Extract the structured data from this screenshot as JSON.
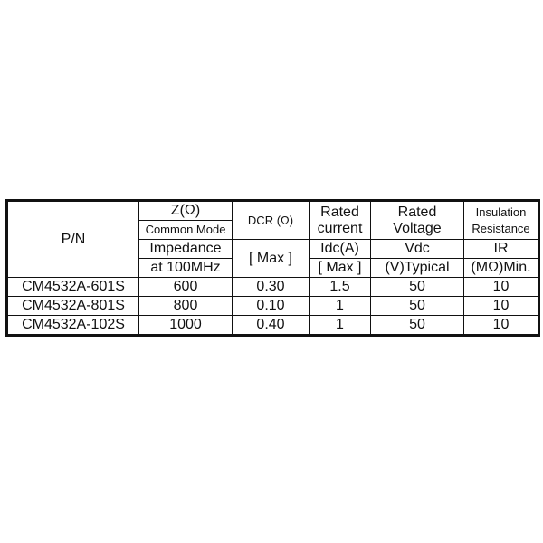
{
  "header": {
    "pn": "P/N",
    "z": "Z(Ω)",
    "common_mode": "Common Mode",
    "impedance": "Impedance",
    "at_freq": "at 100MHz",
    "dcr": "DCR (Ω)",
    "dcr_max": "[ Max ]",
    "rated_current": [
      "Rated",
      "current"
    ],
    "idc": "Idc(A)",
    "idc_max": "[ Max ]",
    "rated_voltage": [
      "Rated",
      "Voltage"
    ],
    "vdc": "Vdc",
    "v_typical": "(V)Typical",
    "insulation": [
      "Insulation",
      "Resistance"
    ],
    "ir": "IR",
    "ir_min": "(MΩ)Min."
  },
  "rows": [
    {
      "pn": "CM4532A-601S",
      "z": "600",
      "dcr": "0.30",
      "idc": "1.5",
      "vdc": "50",
      "ir": "10"
    },
    {
      "pn": "CM4532A-801S",
      "z": "800",
      "dcr": "0.10",
      "idc": "1",
      "vdc": "50",
      "ir": "10"
    },
    {
      "pn": "CM4532A-102S",
      "z": "1000",
      "dcr": "0.40",
      "idc": "1",
      "vdc": "50",
      "ir": "10"
    }
  ]
}
